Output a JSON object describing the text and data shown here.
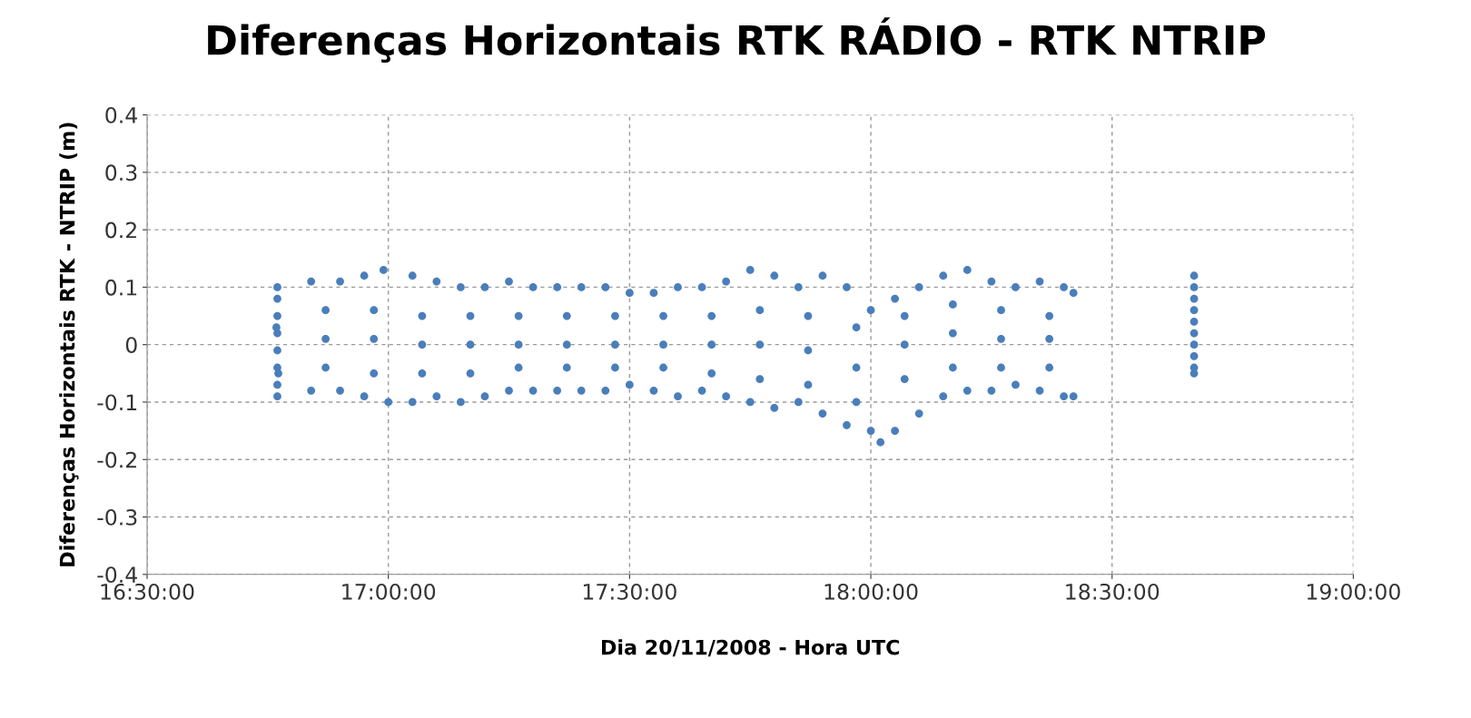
{
  "chart_data": {
    "type": "scatter",
    "title": "Diferenças Horizontais RTK RÁDIO - RTK NTRIP",
    "xlabel": "Dia 20/11/2008 - Hora UTC",
    "ylabel": "Diferenças Horizontais RTK - NTRIP (m)",
    "xlim": [
      16.5,
      19.0
    ],
    "xticks": [
      {
        "value": 16.5,
        "label": "16:30:00"
      },
      {
        "value": 17.0,
        "label": "17:00:00"
      },
      {
        "value": 17.5,
        "label": "17:30:00"
      },
      {
        "value": 18.0,
        "label": "18:00:00"
      },
      {
        "value": 18.5,
        "label": "18:30:00"
      },
      {
        "value": 19.0,
        "label": "19:00:00"
      }
    ],
    "ylim": [
      -0.4,
      0.4
    ],
    "yticks": [
      -0.4,
      -0.3,
      -0.2,
      -0.1,
      0,
      0.1,
      0.2,
      0.3,
      0.4
    ],
    "grid": true,
    "marker": "circle",
    "series": [
      {
        "color": "#4a7ebb",
        "x": [
          16.77,
          16.77,
          16.77,
          16.77,
          16.77,
          16.77,
          16.77,
          16.77,
          16.768,
          16.772,
          16.84,
          16.9,
          16.95,
          16.99,
          17.05,
          17.1,
          17.15,
          17.2,
          17.25,
          17.3,
          17.35,
          17.4,
          17.45,
          17.5,
          17.55,
          17.6,
          17.65,
          17.7,
          17.75,
          17.8,
          17.85,
          17.9,
          17.95,
          18.0,
          18.05,
          18.1,
          18.15,
          18.2,
          18.25,
          18.3,
          18.35,
          18.4,
          18.42,
          16.84,
          16.9,
          16.95,
          17.0,
          17.05,
          17.1,
          17.15,
          17.2,
          17.25,
          17.3,
          17.35,
          17.4,
          17.45,
          17.5,
          17.55,
          17.6,
          17.65,
          17.7,
          17.75,
          17.8,
          17.85,
          17.9,
          17.95,
          18.0,
          18.02,
          18.05,
          18.1,
          18.15,
          18.2,
          18.25,
          18.3,
          18.35,
          18.4,
          18.42,
          16.87,
          16.97,
          17.07,
          17.17,
          17.27,
          17.37,
          17.47,
          17.57,
          17.67,
          17.77,
          17.87,
          17.97,
          18.07,
          18.17,
          18.27,
          18.37,
          16.87,
          16.97,
          17.07,
          17.17,
          17.27,
          17.37,
          17.47,
          17.57,
          17.67,
          17.77,
          17.87,
          17.97,
          18.07,
          18.17,
          18.27,
          18.37,
          16.87,
          16.97,
          17.07,
          17.17,
          17.27,
          17.37,
          17.47,
          17.57,
          17.67,
          17.77,
          17.87,
          17.97,
          18.07,
          18.17,
          18.27,
          18.37,
          18.67,
          18.67,
          18.67,
          18.67,
          18.67,
          18.67,
          18.67,
          18.67,
          18.67,
          18.67
        ],
        "values": [
          0.1,
          0.08,
          0.05,
          0.02,
          -0.01,
          -0.04,
          -0.07,
          -0.09,
          0.03,
          -0.05,
          0.11,
          0.11,
          0.12,
          0.13,
          0.12,
          0.11,
          0.1,
          0.1,
          0.11,
          0.1,
          0.1,
          0.1,
          0.1,
          0.09,
          0.09,
          0.1,
          0.1,
          0.11,
          0.13,
          0.12,
          0.1,
          0.12,
          0.1,
          0.06,
          0.08,
          0.1,
          0.12,
          0.13,
          0.11,
          0.1,
          0.11,
          0.1,
          0.09,
          -0.08,
          -0.08,
          -0.09,
          -0.1,
          -0.1,
          -0.09,
          -0.1,
          -0.09,
          -0.08,
          -0.08,
          -0.08,
          -0.08,
          -0.08,
          -0.07,
          -0.08,
          -0.09,
          -0.08,
          -0.09,
          -0.1,
          -0.11,
          -0.1,
          -0.12,
          -0.14,
          -0.15,
          -0.17,
          -0.15,
          -0.12,
          -0.09,
          -0.08,
          -0.08,
          -0.07,
          -0.08,
          -0.09,
          -0.09,
          0.06,
          0.06,
          0.05,
          0.05,
          0.05,
          0.05,
          0.05,
          0.05,
          0.05,
          0.06,
          0.05,
          0.03,
          0.05,
          0.07,
          0.06,
          0.05,
          0.01,
          0.01,
          0.0,
          0.0,
          0.0,
          0.0,
          0.0,
          0.0,
          0.0,
          0.0,
          -0.01,
          -0.04,
          0.0,
          0.02,
          0.01,
          0.01,
          -0.04,
          -0.05,
          -0.05,
          -0.05,
          -0.04,
          -0.04,
          -0.04,
          -0.04,
          -0.05,
          -0.06,
          -0.07,
          -0.1,
          -0.06,
          -0.04,
          -0.04,
          -0.04,
          0.12,
          0.1,
          0.08,
          0.06,
          0.04,
          0.02,
          0.0,
          -0.02,
          -0.04,
          -0.05
        ]
      }
    ]
  }
}
